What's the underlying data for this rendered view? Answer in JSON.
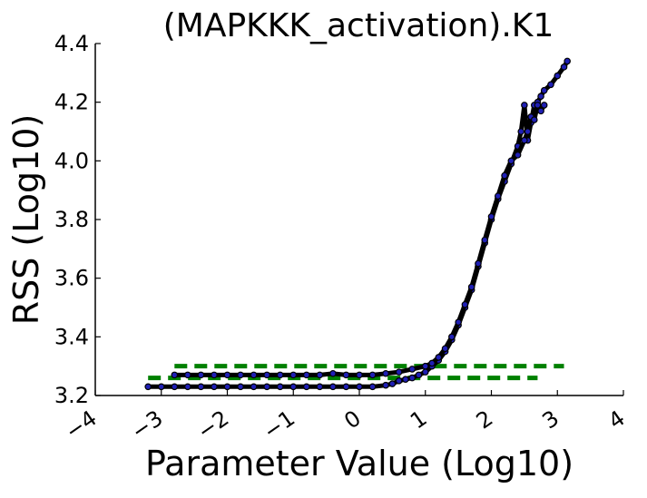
{
  "chart_data": {
    "type": "line",
    "title": "(MAPKKK_activation).K1",
    "xlabel": "Parameter Value (Log10)",
    "ylabel": "RSS (Log10)",
    "xlim": [
      -4,
      4
    ],
    "ylim": [
      3.2,
      4.4
    ],
    "x_ticks": [
      "−4",
      "−3",
      "−2",
      "−1",
      "0",
      "1",
      "2",
      "3",
      "4"
    ],
    "x_tick_values": [
      -4,
      -3,
      -2,
      -1,
      0,
      1,
      2,
      3,
      4
    ],
    "y_ticks": [
      "3.2",
      "3.4",
      "3.6",
      "3.8",
      "4.0",
      "4.2",
      "4.4"
    ],
    "y_tick_values": [
      3.2,
      3.4,
      3.6,
      3.8,
      4.0,
      4.2,
      4.4
    ],
    "grid": false,
    "series": [
      {
        "style": "black-line-with-blue-markers",
        "color": "#000000",
        "marker_color": "#1f1fb4",
        "x": [
          -3.2,
          -3.0,
          -2.8,
          -2.6,
          -2.4,
          -2.2,
          -2.0,
          -1.8,
          -1.6,
          -1.4,
          -1.2,
          -1.0,
          -0.8,
          -0.6,
          -0.4,
          -0.2,
          0.0,
          0.2,
          0.4,
          0.5,
          0.6,
          0.7,
          0.8,
          0.9,
          1.0,
          1.1,
          1.2,
          1.3,
          1.4,
          1.5,
          1.6,
          1.7,
          1.8,
          1.9,
          2.0,
          2.1,
          2.2,
          2.3,
          2.4,
          2.45,
          2.5,
          2.55,
          2.6,
          2.65,
          2.7,
          2.75,
          2.8,
          2.9,
          3.0,
          3.1,
          3.15
        ],
        "y": [
          3.23,
          3.23,
          3.23,
          3.23,
          3.23,
          3.23,
          3.23,
          3.23,
          3.23,
          3.23,
          3.23,
          3.23,
          3.23,
          3.23,
          3.23,
          3.23,
          3.23,
          3.23,
          3.235,
          3.24,
          3.25,
          3.255,
          3.26,
          3.27,
          3.28,
          3.3,
          3.32,
          3.35,
          3.39,
          3.44,
          3.5,
          3.56,
          3.64,
          3.72,
          3.8,
          3.87,
          3.93,
          3.99,
          4.05,
          4.1,
          4.19,
          4.07,
          4.13,
          4.19,
          4.2,
          4.22,
          4.24,
          4.26,
          4.29,
          4.32,
          4.34
        ]
      },
      {
        "style": "black-line-with-blue-markers",
        "color": "#000000",
        "marker_color": "#1f1fb4",
        "x": [
          -2.8,
          -2.6,
          -2.4,
          -2.2,
          -2.0,
          -1.8,
          -1.6,
          -1.4,
          -1.2,
          -1.0,
          -0.8,
          -0.6,
          -0.4,
          -0.2,
          0.0,
          0.2,
          0.4,
          0.6,
          0.8,
          1.0,
          1.1,
          1.2,
          1.3,
          1.4,
          1.5,
          1.6,
          1.7,
          1.8,
          1.9,
          2.0,
          2.1,
          2.2,
          2.3,
          2.4,
          2.5,
          2.55,
          2.6,
          2.65,
          2.7,
          2.75,
          2.8
        ],
        "y": [
          3.27,
          3.27,
          3.27,
          3.27,
          3.27,
          3.27,
          3.27,
          3.27,
          3.27,
          3.27,
          3.27,
          3.27,
          3.275,
          3.27,
          3.27,
          3.27,
          3.275,
          3.28,
          3.29,
          3.3,
          3.31,
          3.33,
          3.36,
          3.4,
          3.45,
          3.51,
          3.57,
          3.65,
          3.73,
          3.81,
          3.88,
          3.95,
          4.0,
          4.02,
          4.07,
          4.1,
          4.15,
          4.14,
          4.19,
          4.17,
          4.19
        ]
      }
    ],
    "thresholds": [
      {
        "style": "dashed",
        "color": "#008000",
        "y": 3.3,
        "x_range": [
          -2.8,
          3.1
        ]
      },
      {
        "style": "dashed",
        "color": "#008000",
        "y": 3.26,
        "x_range": [
          -3.2,
          2.7
        ]
      }
    ]
  }
}
